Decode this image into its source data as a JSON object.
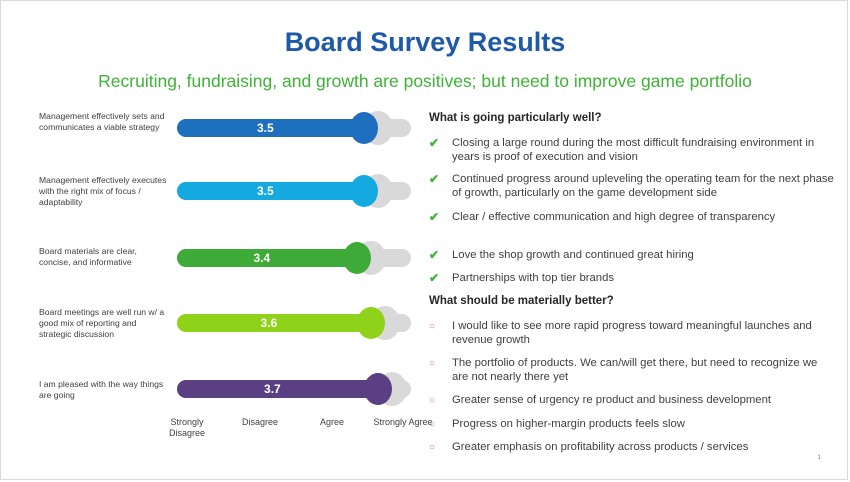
{
  "title": "Board Survey Results",
  "subtitle": "Recruiting, fundraising, and growth are positives; but need to improve game portfolio",
  "scale_labels": [
    "Strongly Disagree",
    "Disagree",
    "Agree",
    "Strongly Agree"
  ],
  "scale_range": [
    1,
    4
  ],
  "questions": [
    {
      "text": "Management effectively sets and communicates a viable strategy",
      "score": "3.5",
      "color": "#1f6fbf"
    },
    {
      "text": "Management effectively executes with the right mix of focus / adaptability",
      "score": "3.5",
      "color": "#15a9e1"
    },
    {
      "text": "Board materials are clear, concise, and informative",
      "score": "3.4",
      "color": "#3eaa38"
    },
    {
      "text": "Board meetings are well run w/ a good mix of reporting and strategic discussion",
      "score": "3.6",
      "color": "#8fd21a"
    },
    {
      "text": "I am pleased with the way things are going",
      "score": "3.7",
      "color": "#5a3f82"
    }
  ],
  "well": {
    "title": "What is going particularly well?",
    "items": [
      "Closing a large round during the most difficult fundraising environment in years is proof of execution and vision",
      "Continued progress around upleveling the operating team for the next phase of growth, particularly on the game development side",
      "Clear / effective communication and high degree of transparency",
      "Love the shop growth and continued great hiring",
      "Partnerships with top tier brands"
    ]
  },
  "better": {
    "title": "What should be materially better?",
    "items": [
      "I would like to see more rapid progress toward meaningful launches and revenue growth",
      "The portfolio of products. We can/will get there, but need to recognize we are not nearly there yet",
      "Greater sense of urgency re product and business development",
      "Progress on higher-margin products feels slow",
      "Greater emphasis on profitability across products / services"
    ]
  },
  "page_number": "1"
}
